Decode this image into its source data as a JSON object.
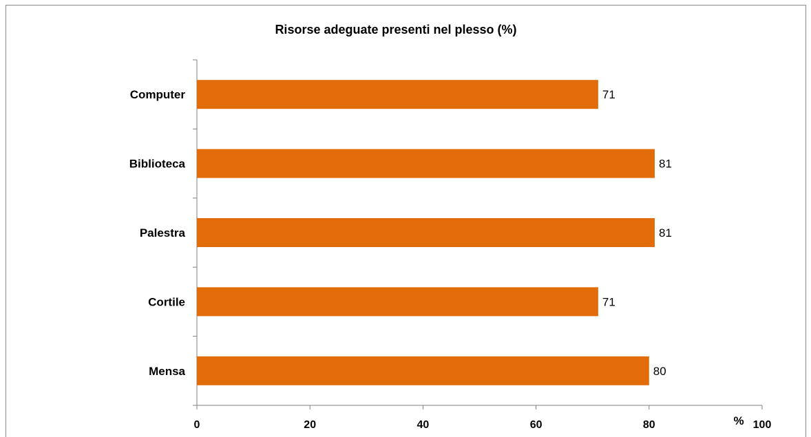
{
  "chart_data": {
    "type": "bar",
    "orientation": "horizontal",
    "title": "Risorse adeguate presenti nel plesso  (%)",
    "categories": [
      "Computer",
      "Biblioteca",
      "Palestra",
      "Cortile",
      "Mensa"
    ],
    "values": [
      71,
      81,
      81,
      71,
      80
    ],
    "data_labels": [
      "71",
      "81",
      "81",
      "71",
      "80"
    ],
    "xlim": [
      0,
      100
    ],
    "x_ticks": [
      "0",
      "20",
      "40",
      "60",
      "80",
      "100"
    ],
    "x_unit_label": "%",
    "bar_color": "#E36C0A",
    "grid": false,
    "legend": "none"
  }
}
